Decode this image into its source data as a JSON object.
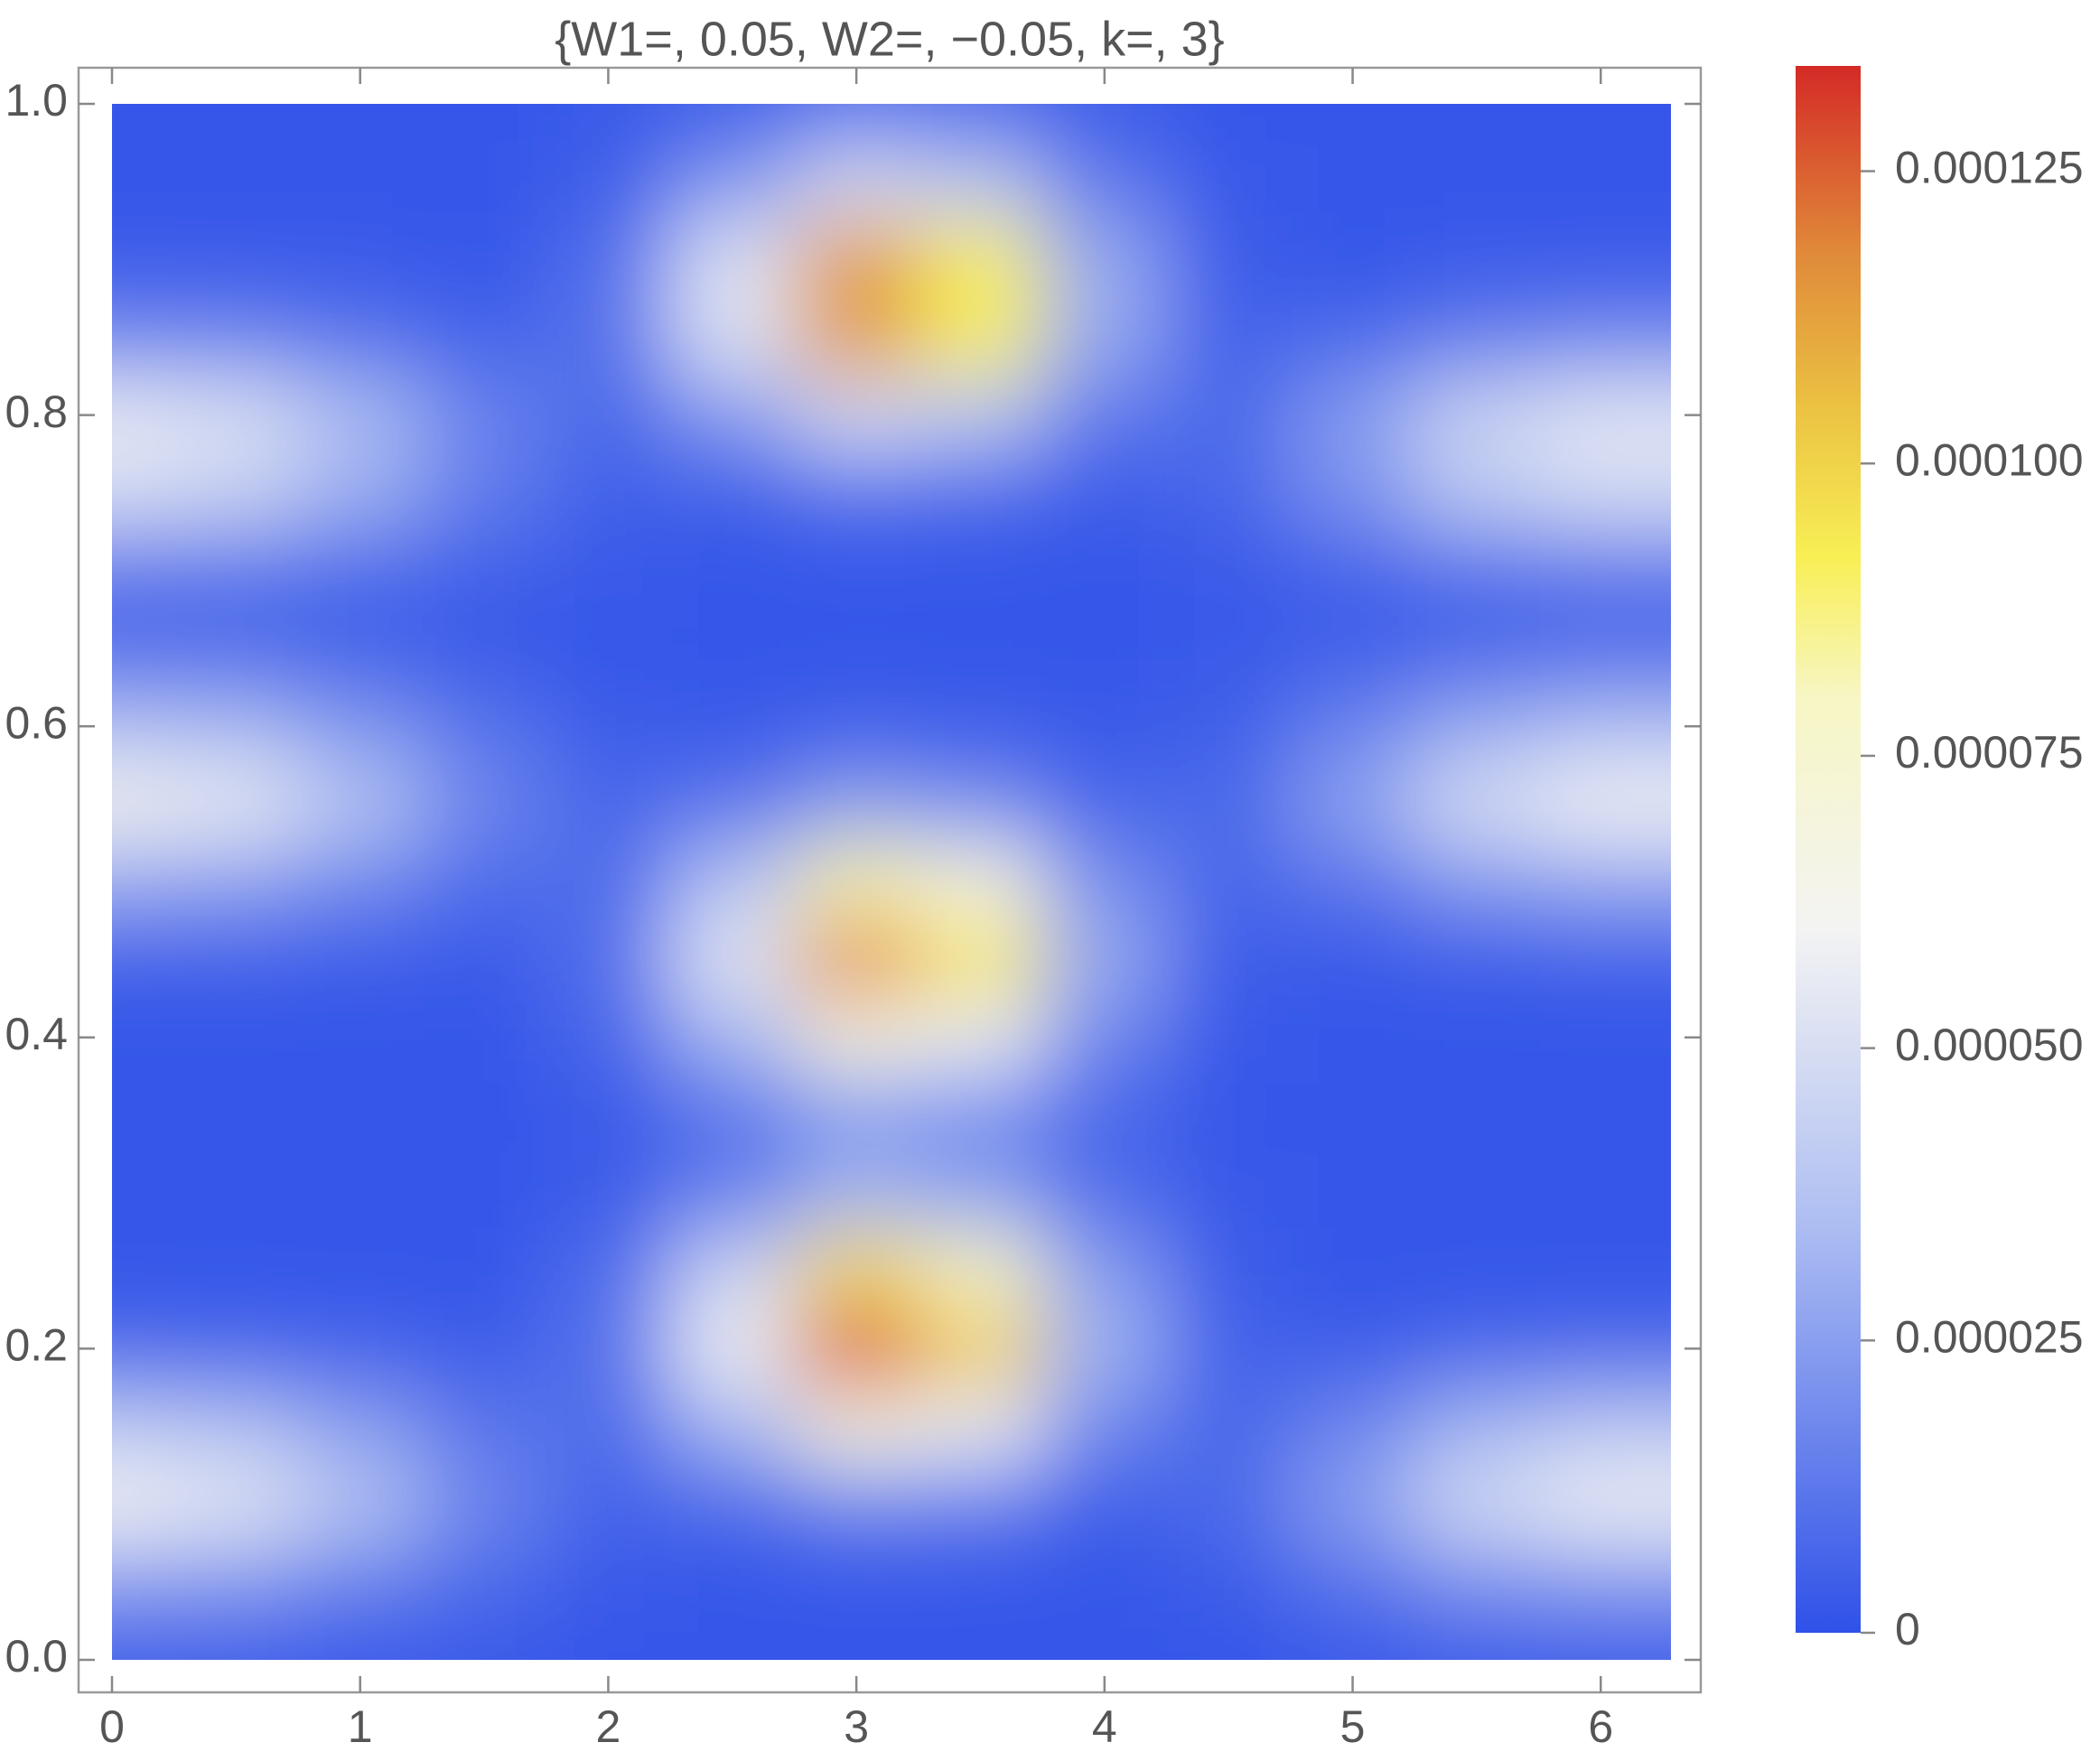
{
  "chart_data": {
    "type": "heatmap",
    "title": "{W1=, 0.05, W2=, −0.05, k=, 3}",
    "x": [
      0,
      0.5,
      1,
      1.5,
      2,
      2.5,
      3,
      3.5,
      4,
      4.5,
      5,
      5.5,
      6
    ],
    "y": [
      0,
      0.05,
      0.1,
      0.15,
      0.2,
      0.25,
      0.3,
      0.35,
      0.4,
      0.45,
      0.5,
      0.55,
      0.6,
      0.65,
      0.7,
      0.75,
      0.8,
      0.85,
      0.9,
      0.95,
      1
    ],
    "z": [
      [
        4e-06,
        4e-06,
        3e-06,
        3e-06,
        2e-06,
        2e-06,
        2e-06,
        2e-06,
        2e-06,
        2e-06,
        3e-06,
        4e-06,
        4e-06
      ],
      [
        2.4e-05,
        2.2e-05,
        1.5e-05,
        8e-06,
        3e-06,
        2e-06,
        2e-06,
        2e-06,
        2e-06,
        4e-06,
        1.1e-05,
        2e-05,
        2.3e-05
      ],
      [
        6e-05,
        5.4e-05,
        3.7e-05,
        1.7e-05,
        6e-06,
        8e-06,
        1.6e-05,
        1.4e-05,
        5e-06,
        8e-06,
        2.5e-05,
        4.8e-05,
        5.8e-05
      ],
      [
        4e-05,
        3.6e-05,
        2.5e-05,
        1.2e-05,
        9e-06,
        3.2e-05,
        6.9e-05,
        5.6e-05,
        1.7e-05,
        7e-06,
        1.7e-05,
        3.2e-05,
        3.9e-05
      ],
      [
        8e-06,
        7e-06,
        6e-06,
        4e-06,
        1.1e-05,
        5.8e-05,
        0.000127,
        0.000102,
        3.1e-05,
        6e-06,
        4e-06,
        7e-06,
        8e-06
      ],
      [
        2e-06,
        2e-06,
        2e-06,
        2e-06,
        9e-06,
        4.5e-05,
        9.8e-05,
        7.9e-05,
        2.4e-05,
        4e-06,
        2e-06,
        2e-06,
        2e-06
      ],
      [
        2e-06,
        2e-06,
        2e-06,
        2e-06,
        4e-06,
        1.5e-05,
        3.2e-05,
        2.6e-05,
        9e-06,
        3e-06,
        2e-06,
        2e-06,
        2e-06
      ],
      [
        2e-06,
        2e-06,
        2e-06,
        2e-06,
        3e-06,
        1.1e-05,
        2.2e-05,
        1.8e-05,
        7e-06,
        2e-06,
        2e-06,
        2e-06,
        2e-06
      ],
      [
        2e-06,
        2e-06,
        2e-06,
        2e-06,
        7e-06,
        3.2e-05,
        6.9e-05,
        5.6e-05,
        1.7e-05,
        3e-06,
        2e-06,
        2e-06,
        2e-06
      ],
      [
        5e-06,
        5e-06,
        4e-06,
        3e-06,
        1e-05,
        5.4e-05,
        0.000117,
        9.4e-05,
        2.8e-05,
        4e-06,
        3e-06,
        4e-06,
        5e-06
      ],
      [
        2.8e-05,
        2.5e-05,
        1.8e-05,
        9e-06,
        9e-06,
        3.8e-05,
        8.3e-05,
        6.7e-05,
        2e-05,
        7e-06,
        1.2e-05,
        2.3e-05,
        2.7e-05
      ],
      [
        6.2e-05,
        5.6e-05,
        3.8e-05,
        1.7e-05,
        7e-06,
        1.2e-05,
        2.5e-05,
        2e-05,
        7e-06,
        8e-06,
        2.6e-05,
        5e-05,
        6e-05
      ],
      [
        3.6e-05,
        3.3e-05,
        2.2e-05,
        1.1e-05,
        4e-06,
        3e-06,
        5e-06,
        4e-06,
        3e-06,
        5e-06,
        1.6e-05,
        2.9e-05,
        3.5e-05
      ],
      [
        7e-06,
        7e-06,
        5e-06,
        3e-06,
        2e-06,
        2e-06,
        2e-06,
        2e-06,
        2e-06,
        3e-06,
        4e-06,
        6e-06,
        7e-06
      ],
      [
        1.2e-05,
        1.1e-05,
        8e-06,
        5e-06,
        3e-06,
        2e-06,
        2e-06,
        2e-06,
        2e-06,
        3e-06,
        6e-06,
        1e-05,
        1.2e-05
      ],
      [
        4.9e-05,
        4.4e-05,
        3e-05,
        1.4e-05,
        5e-06,
        5e-06,
        1e-05,
        8e-06,
        4e-06,
        7e-06,
        2.1e-05,
        4e-05,
        4.8e-05
      ],
      [
        5.6e-05,
        5.1e-05,
        3.4e-05,
        1.6e-05,
        8e-06,
        2.3e-05,
        4.8e-05,
        3.9e-05,
        1.3e-05,
        8e-06,
        2.4e-05,
        4.5e-05,
        5.4e-05
      ],
      [
        1.7e-05,
        1.6e-05,
        1.1e-05,
        6e-06,
        1.1e-05,
        5.2e-05,
        0.000114,
        9.2e-05,
        2.8e-05,
        6e-06,
        8e-06,
        1.4e-05,
        1.7e-05
      ],
      [
        3e-06,
        3e-06,
        3e-06,
        2e-06,
        1e-05,
        5.2e-05,
        0.000114,
        9.2e-05,
        2.8e-05,
        4e-06,
        2e-06,
        3e-06,
        3e-06
      ],
      [
        2e-06,
        2e-06,
        2e-06,
        2e-06,
        5e-06,
        2.3e-05,
        4.8e-05,
        3.9e-05,
        1.3e-05,
        3e-06,
        2e-06,
        2e-06,
        2e-06
      ],
      [
        2e-06,
        2e-06,
        2e-06,
        2e-06,
        3e-06,
        5e-06,
        1e-05,
        8e-06,
        4e-06,
        2e-06,
        2e-06,
        2e-06,
        2e-06
      ]
    ],
    "xlim": [
      0,
      6.283
    ],
    "ylim": [
      0,
      1
    ],
    "xticks": [
      0,
      1,
      2,
      3,
      4,
      5,
      6
    ],
    "yticks": [
      {
        "value": 0,
        "label": "0.0"
      },
      0.2,
      0.4,
      0.6,
      0.8,
      {
        "value": 1,
        "label": "1.0"
      }
    ],
    "colorbar_lim": [
      0,
      0.000134
    ],
    "colorbar_ticks": [
      0,
      2.5e-05,
      {
        "value": 5e-05,
        "label": "0.000050"
      },
      7.5e-05,
      {
        "value": 0.0001,
        "label": "0.000100"
      },
      0.000125
    ],
    "colorscale": [
      {
        "value": 0,
        "color": "#2f51e8"
      },
      {
        "value": 3.5e-05,
        "color": "#aebef2"
      },
      {
        "value": 6e-05,
        "color": "#f3f3f3"
      },
      {
        "value": 8e-05,
        "color": "#f7f6c4"
      },
      {
        "value": 9.2e-05,
        "color": "#f8ef55"
      },
      {
        "value": 0.000105,
        "color": "#ebc142"
      },
      {
        "value": 0.000118,
        "color": "#e08a3a"
      },
      {
        "value": 0.000134,
        "color": "#d42a26"
      }
    ]
  }
}
